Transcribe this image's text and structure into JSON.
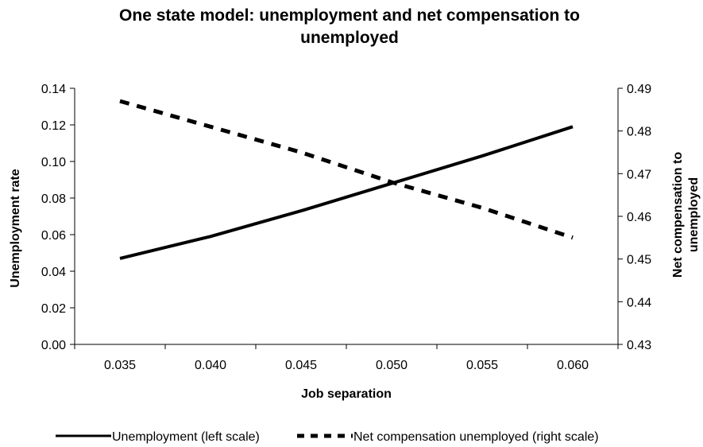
{
  "chart_data": {
    "type": "line",
    "title_lines": [
      "One state model: unemployment and net compensation to",
      "unemployed"
    ],
    "xlabel": "Job separation",
    "ylabel_left": "Unemployment rate",
    "ylabel_right_lines": [
      "Net compensation to",
      "unemployed"
    ],
    "categories": [
      "0.035",
      "0.040",
      "0.045",
      "0.050",
      "0.055",
      "0.060"
    ],
    "y_left": {
      "range": [
        0,
        0.14
      ],
      "ticks": [
        "0.00",
        "0.02",
        "0.04",
        "0.06",
        "0.08",
        "0.10",
        "0.12",
        "0.14"
      ]
    },
    "y_right": {
      "range": [
        0.43,
        0.49
      ],
      "ticks": [
        "0.43",
        "0.44",
        "0.45",
        "0.46",
        "0.47",
        "0.48",
        "0.49"
      ]
    },
    "grid": false,
    "legend_position": "bottom",
    "series": [
      {
        "name": "Unemployment (left scale)",
        "axis": "left",
        "style": "solid",
        "color": "#000000",
        "values": [
          0.047,
          0.059,
          0.073,
          0.088,
          0.103,
          0.119
        ]
      },
      {
        "name": "Net compensation unemployed (right scale)",
        "axis": "right",
        "style": "dashed",
        "color": "#000000",
        "values": [
          0.487,
          0.481,
          0.475,
          0.468,
          0.462,
          0.455
        ]
      }
    ]
  }
}
